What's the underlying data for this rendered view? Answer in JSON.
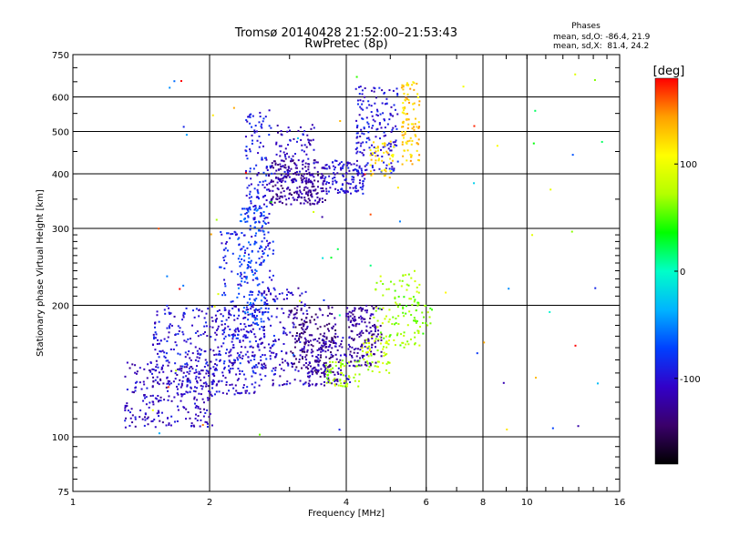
{
  "chart_data": {
    "type": "scatter",
    "title": "Tromsø 20140428 21:52:00–21:53:43",
    "subtitle": "RwPretec (8p)",
    "xlabel": "Frequency [MHz]",
    "ylabel": "Stationary phase Virtual Height [km]",
    "xscale": "log",
    "yscale": "log",
    "xlim": [
      1,
      16
    ],
    "ylim": [
      75,
      750
    ],
    "xticks": [
      1,
      2,
      4,
      6,
      8,
      10,
      16
    ],
    "yticks": [
      75,
      100,
      200,
      300,
      400,
      500,
      600,
      750
    ],
    "grid": true,
    "info": {
      "heading": "Phases",
      "line1": "mean, sd,O: -86.4, 21.9",
      "line2": "mean, sd,X:  81.4, 24.2"
    },
    "colorbar": {
      "label": "[deg]",
      "range": [
        -180,
        180
      ],
      "ticks": [
        100,
        0,
        -100
      ],
      "colors": [
        "#000000",
        "#3a006a",
        "#3200c8",
        "#0040ff",
        "#00b4ff",
        "#00ffc8",
        "#00ff00",
        "#b4ff00",
        "#ffff00",
        "#ffa000",
        "#ff0000"
      ]
    },
    "clusters": [
      {
        "f": [
          1.3,
          2.05
        ],
        "h": [
          105,
          150
        ],
        "phase": -110,
        "n": 260
      },
      {
        "f": [
          1.5,
          2.0
        ],
        "h": [
          130,
          200
        ],
        "phase": -100,
        "n": 160
      },
      {
        "f": [
          2.0,
          2.6
        ],
        "h": [
          125,
          200
        ],
        "phase": -105,
        "n": 220
      },
      {
        "f": [
          2.1,
          2.8
        ],
        "h": [
          140,
          300
        ],
        "phase": -90,
        "n": 210
      },
      {
        "f": [
          2.3,
          2.65
        ],
        "h": [
          180,
          340
        ],
        "phase": -70,
        "n": 120
      },
      {
        "f": [
          2.4,
          2.75
        ],
        "h": [
          300,
          560
        ],
        "phase": -95,
        "n": 130
      },
      {
        "f": [
          2.7,
          3.6
        ],
        "h": [
          340,
          430
        ],
        "phase": -125,
        "n": 240
      },
      {
        "f": [
          2.8,
          3.4
        ],
        "h": [
          380,
          520
        ],
        "phase": -110,
        "n": 90
      },
      {
        "f": [
          3.6,
          4.4
        ],
        "h": [
          360,
          430
        ],
        "phase": -100,
        "n": 120
      },
      {
        "f": [
          4.2,
          5.2
        ],
        "h": [
          400,
          640
        ],
        "phase": -100,
        "n": 170
      },
      {
        "f": [
          4.5,
          5.1
        ],
        "h": [
          390,
          480
        ],
        "phase": 120,
        "n": 45
      },
      {
        "f": [
          5.3,
          5.8
        ],
        "h": [
          420,
          650
        ],
        "phase": 130,
        "n": 100
      },
      {
        "f": [
          2.6,
          3.3
        ],
        "h": [
          130,
          220
        ],
        "phase": -110,
        "n": 150
      },
      {
        "f": [
          3.0,
          3.8
        ],
        "h": [
          140,
          200
        ],
        "phase": -135,
        "n": 170
      },
      {
        "f": [
          3.3,
          4.1
        ],
        "h": [
          130,
          170
        ],
        "phase": -115,
        "n": 130
      },
      {
        "f": [
          3.6,
          4.3
        ],
        "h": [
          130,
          150
        ],
        "phase": 70,
        "n": 60
      },
      {
        "f": [
          4.0,
          4.8
        ],
        "h": [
          145,
          200
        ],
        "phase": -125,
        "n": 160
      },
      {
        "f": [
          4.3,
          5.0
        ],
        "h": [
          140,
          170
        ],
        "phase": 80,
        "n": 55
      },
      {
        "f": [
          4.6,
          5.8
        ],
        "h": [
          160,
          240
        ],
        "phase": 70,
        "n": 90
      },
      {
        "f": [
          5.2,
          6.2
        ],
        "h": [
          170,
          210
        ],
        "phase": 60,
        "n": 40
      }
    ]
  }
}
